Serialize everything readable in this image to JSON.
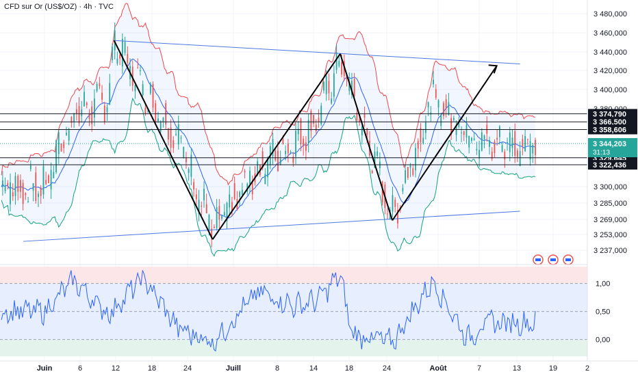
{
  "header": {
    "title": "CFD sur Or (US$/OZ) · 4h · TVC"
  },
  "colors": {
    "up": "#26a69a",
    "down": "#ef5350",
    "bb_upper": "#f0464b",
    "bb_basis": "#2962ff",
    "bb_lower": "#10a37f",
    "trendline": "#4a78e0",
    "zigzag": "#000000",
    "osc": "#2962ff",
    "price_label_bg": "#26a69a"
  },
  "chart_data": [
    {
      "type": "candlestick",
      "title": "CFD sur Or (US$/OZ) · 4h · TVC",
      "price_axis_ticks": [
        "3 480,000",
        "3 460,000",
        "3 440,000",
        "3 420,000",
        "3 400,000",
        "3 380,000",
        "3 300,000",
        "3 285,000",
        "3 269,000",
        "3 253,000",
        "3 237,000"
      ],
      "time_axis_ticks": [
        "Juin",
        "6",
        "12",
        "18",
        "24",
        "Juill",
        "8",
        "14",
        "18",
        "24",
        "Août",
        "7",
        "13",
        "19",
        "2"
      ],
      "levels": [
        {
          "label": "3 374,790",
          "value": 3374.79
        },
        {
          "label": "3 366,500",
          "value": 3366.5
        },
        {
          "label": "3 358,606",
          "value": 3358.606
        },
        {
          "label": "3 329,645",
          "value": 3329.645
        },
        {
          "label": "3 322,436",
          "value": 3322.436
        }
      ],
      "current_price": {
        "label": "3 344,203",
        "countdown": "31:13",
        "value": 3344.203
      },
      "zigzag_path": [
        {
          "time": "Jun 13",
          "price": 3452
        },
        {
          "time": "Jun 30",
          "price": 3248
        },
        {
          "time": "Jul 22",
          "price": 3438
        },
        {
          "time": "Jul 31",
          "price": 3268
        },
        {
          "time": "Aug 18",
          "price": 3425
        }
      ],
      "channel_upper": [
        {
          "time": "Jun 13",
          "price": 3452
        },
        {
          "time": "Aug 22",
          "price": 3427
        }
      ],
      "channel_lower": [
        {
          "time": "Jun 1",
          "price": 3246
        },
        {
          "time": "Aug 22",
          "price": 3277
        }
      ],
      "series": [
        {
          "name": "close",
          "x": [
            "Jun 1",
            "Jun 6",
            "Jun 12",
            "Jun 13",
            "Jun 18",
            "Jun 24",
            "Jun 30",
            "Jul 8",
            "Jul 14",
            "Jul 18",
            "Jul 22",
            "Jul 24",
            "Jul 31",
            "Aug 7",
            "Aug 13",
            "Aug 16"
          ],
          "values": [
            3300,
            3375,
            3390,
            3450,
            3400,
            3350,
            3255,
            3320,
            3345,
            3370,
            3430,
            3395,
            3270,
            3390,
            3355,
            3344
          ]
        }
      ]
    },
    {
      "type": "line",
      "title": "",
      "y_axis_ticks": [
        "1,00",
        "0,50",
        "0,00"
      ],
      "ylim": [
        -0.3,
        1.3
      ],
      "bands": [
        {
          "from": 1.0,
          "to": 1.3,
          "color": "#fde6e7"
        },
        {
          "from": 0.0,
          "to": 1.0,
          "color": "#e7eefd"
        },
        {
          "from": -0.3,
          "to": 0.0,
          "color": "#e4f4ec"
        }
      ],
      "series": [
        {
          "name": "",
          "x": [
            "Jun 1",
            "Jun 6",
            "Jun 12",
            "Jun 18",
            "Jun 24",
            "Jun 30",
            "Jul 8",
            "Jul 14",
            "Jul 18",
            "Jul 22",
            "Jul 24",
            "Jul 31",
            "Aug 7",
            "Aug 13",
            "Aug 16"
          ],
          "values": [
            0.5,
            1.05,
            0.45,
            1.1,
            0.2,
            -0.05,
            0.85,
            0.6,
            0.7,
            1.15,
            0.1,
            -0.05,
            1.05,
            0.0,
            0.3
          ]
        }
      ]
    }
  ]
}
